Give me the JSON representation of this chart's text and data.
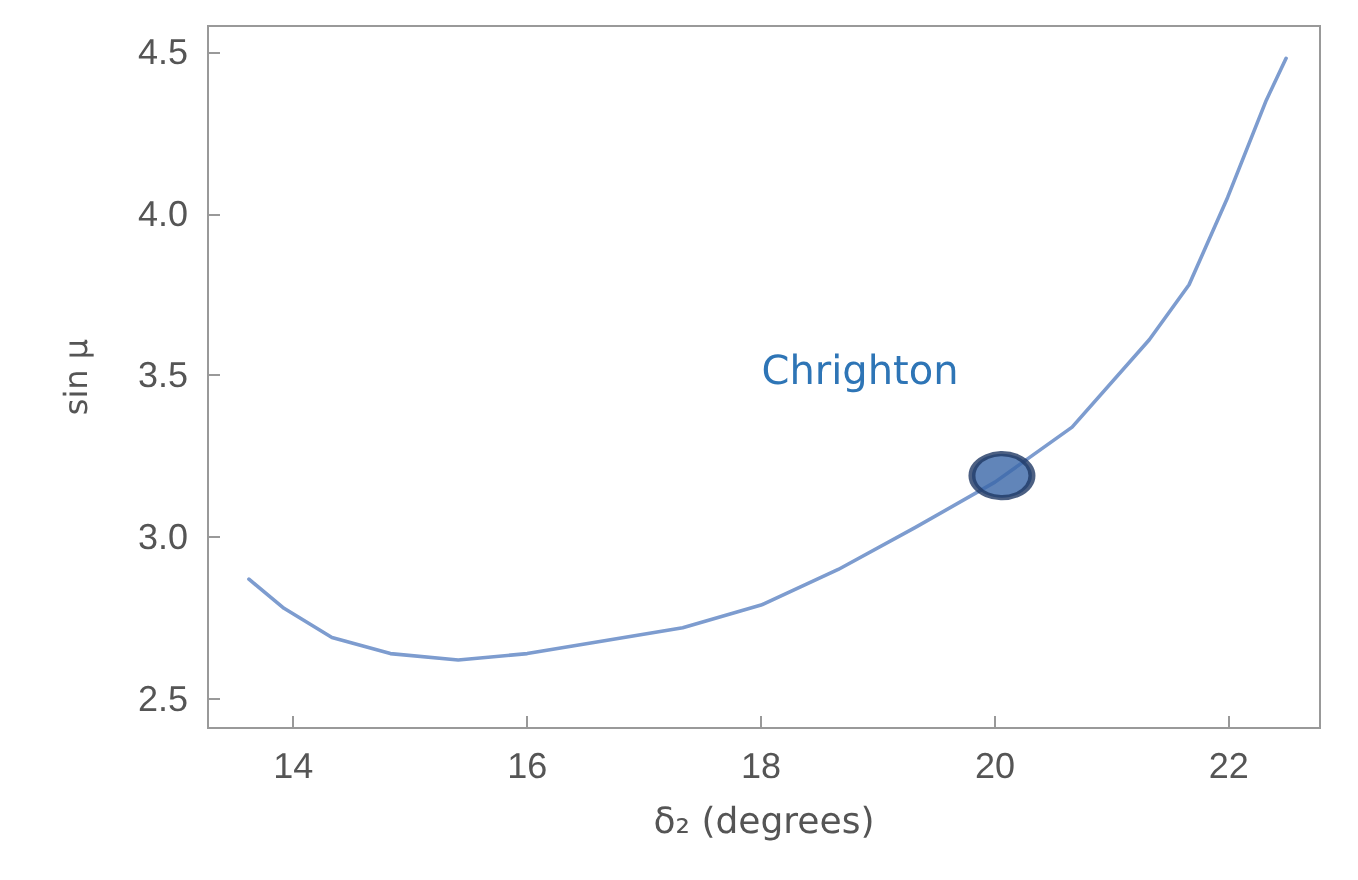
{
  "chart_data": {
    "type": "line",
    "xlabel": "δ₂ (degrees)",
    "ylabel": "sin μ",
    "xlim": [
      13.27,
      22.78
    ],
    "ylim": [
      2.41,
      4.58
    ],
    "xticks": [
      14,
      16,
      18,
      20,
      22
    ],
    "yticks": [
      2.5,
      {
        "value": 3,
        "label": "3.0"
      },
      3.5,
      {
        "value": 4,
        "label": "4.0"
      },
      4.5
    ],
    "grid": false,
    "marker": "none",
    "line_style": "solid",
    "series": [
      {
        "type": "line",
        "color": "#7d9ccf",
        "x": [
          13.62,
          13.92,
          14.33,
          14.83,
          15.41,
          16.0,
          16.66,
          17.33,
          18.0,
          18.66,
          19.32,
          20.0,
          20.66,
          21.32,
          21.66,
          21.99,
          22.32,
          22.49
        ],
        "values": [
          2.87,
          2.78,
          2.69,
          2.64,
          2.62,
          2.64,
          2.68,
          2.72,
          2.79,
          2.9,
          3.03,
          3.17,
          3.34,
          3.61,
          3.78,
          4.05,
          4.35,
          4.48
        ]
      },
      {
        "type": "scatter",
        "color": "#3a66a8",
        "marker": "circle",
        "x": [
          20.06
        ],
        "values": [
          3.19
        ]
      }
    ],
    "annotations": [
      "Chrighton"
    ]
  }
}
